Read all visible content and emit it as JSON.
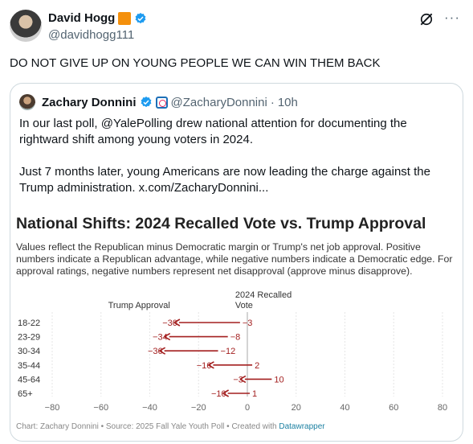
{
  "author": {
    "name": "David Hogg",
    "handle": "@davidhogg111"
  },
  "tweet_text": "DO NOT GIVE UP ON YOUNG PEOPLE WE CAN WIN THEM BACK",
  "quote": {
    "name": "Zachary Donnini",
    "handle": "@ZacharyDonnini",
    "separator": "·",
    "time": "10h",
    "paragraph1": "In our last poll, @YalePolling drew national attention for documenting the rightward shift among young voters in 2024.",
    "paragraph2": "Just 7 months later, young Americans are now leading the charge against the Trump administration.  x.com/ZacharyDonnini..."
  },
  "chart_data": {
    "type": "dot-arrow",
    "title": "National Shifts: 2024 Recalled Vote vs. Trump Approval",
    "description": "Values reflect the Republican minus Democratic margin or Trump's net job approval. Positive numbers indicate a Republican advantage, while negative numbers indicate a Democratic edge. For approval ratings, negative numbers represent net disapproval (approve minus disapprove).",
    "series_labels": {
      "approval": "Trump Approval",
      "vote_line1": "2024 Recalled",
      "vote_line2": "Vote"
    },
    "categories": [
      "18-22",
      "23-29",
      "30-34",
      "35-44",
      "45-64",
      "65+"
    ],
    "vote_2024": [
      -3,
      -8,
      -12,
      2,
      10,
      1
    ],
    "trump_approval": [
      -30,
      -34,
      -36,
      -16,
      -3,
      -10
    ],
    "x_ticks": [
      -80,
      -60,
      -40,
      -20,
      0,
      20,
      40,
      60,
      80
    ],
    "xlim": [
      -80,
      80
    ],
    "arrow_color": "#a31f1f",
    "credit_prefix": "Chart: Zachary Donnini • Source: 2025 Fall Yale Youth Poll • Created with ",
    "credit_tool": "Datawrapper"
  },
  "colors": {
    "verified": "#1d9bf0",
    "badge": "#f4900c",
    "muted": "#536471"
  }
}
